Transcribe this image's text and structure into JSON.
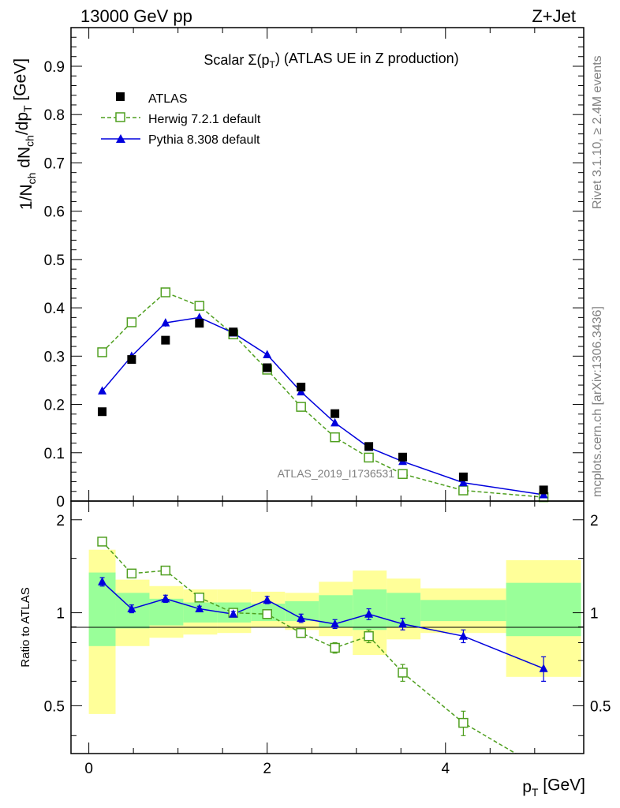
{
  "header": {
    "left": "13000 GeV pp",
    "right": "Z+Jet"
  },
  "side": {
    "rivet": "Rivet 3.1.10, ≥ 2.4M events",
    "mcplots": "mcplots.cern.ch [arXiv:1306.3436]"
  },
  "colors": {
    "atlas": "#000000",
    "herwig": "#4f9f1f",
    "pythia": "#0000dd",
    "band_yellow": "#ffff99",
    "band_green": "#99ff99"
  },
  "chart_data": [
    {
      "type": "scatter",
      "title": "Scalar Σ(p_T) (ATLAS UE in Z production)",
      "analysis_tag": "ATLAS_2019_I1736531",
      "ylabel": "1/N_ch dN_ch/dp_T [GeV]",
      "xlim": [
        -0.2,
        5.55
      ],
      "ylim": [
        0,
        0.98
      ],
      "yticks": [
        0,
        0.1,
        0.2,
        0.3,
        0.4,
        0.5,
        0.6,
        0.7,
        0.8,
        0.9
      ],
      "ytick_labels": [
        "0",
        "0.1",
        "0.2",
        "0.3",
        "0.4",
        "0.5",
        "0.6",
        "0.7",
        "0.8",
        "0.9"
      ],
      "legend": {
        "placement": "top-left"
      },
      "x": [
        0.15,
        0.48,
        0.86,
        1.24,
        1.62,
        2.0,
        2.38,
        2.76,
        3.14,
        3.52,
        4.2,
        5.1
      ],
      "series": [
        {
          "name": "ATLAS",
          "marker": "square-filled",
          "values": [
            0.185,
            0.293,
            0.333,
            0.368,
            0.35,
            0.276,
            0.236,
            0.181,
            0.113,
            0.091,
            0.05,
            0.023
          ]
        },
        {
          "name": "Herwig 7.2.1 default",
          "marker": "square-open",
          "line": "dashed",
          "values": [
            0.308,
            0.37,
            0.432,
            0.404,
            0.345,
            0.272,
            0.195,
            0.132,
            0.09,
            0.056,
            0.022,
            0.008
          ],
          "errors": [
            0.008,
            0.008,
            0.009,
            0.008,
            0.007,
            0.006,
            0.005,
            0.004,
            0.004,
            0.003,
            0.002,
            0.002
          ]
        },
        {
          "name": "Pythia 8.308 default",
          "marker": "triangle-filled",
          "line": "solid",
          "values": [
            0.228,
            0.3,
            0.369,
            0.38,
            0.348,
            0.303,
            0.226,
            0.162,
            0.111,
            0.082,
            0.038,
            0.013
          ],
          "errors": [
            0.006,
            0.008,
            0.008,
            0.008,
            0.007,
            0.006,
            0.005,
            0.004,
            0.003,
            0.003,
            0.002,
            0.002
          ]
        }
      ]
    },
    {
      "type": "line",
      "ylabel": "Ratio to ATLAS",
      "xlabel": "p_T [GeV]",
      "xlim": [
        -0.2,
        5.55
      ],
      "ylim": [
        0.35,
        2.3
      ],
      "yscale": "log",
      "xticks": [
        0,
        2,
        4
      ],
      "xtick_labels": [
        "0",
        "2",
        "4"
      ],
      "yticks": [
        0.5,
        1,
        2
      ],
      "ytick_labels": [
        "0.5",
        "1",
        "2"
      ],
      "bins": [
        [
          0.0,
          0.3
        ],
        [
          0.3,
          0.68
        ],
        [
          0.68,
          1.06
        ],
        [
          1.06,
          1.44
        ],
        [
          1.44,
          1.82
        ],
        [
          1.82,
          2.2
        ],
        [
          2.2,
          2.58
        ],
        [
          2.58,
          2.96
        ],
        [
          2.96,
          3.34
        ],
        [
          3.34,
          3.72
        ],
        [
          3.72,
          4.68
        ],
        [
          4.68,
          5.52
        ]
      ],
      "band_total": [
        [
          0.47,
          1.6
        ],
        [
          0.78,
          1.28
        ],
        [
          0.83,
          1.22
        ],
        [
          0.85,
          1.19
        ],
        [
          0.86,
          1.19
        ],
        [
          0.9,
          1.17
        ],
        [
          0.88,
          1.16
        ],
        [
          0.84,
          1.26
        ],
        [
          0.73,
          1.37
        ],
        [
          0.82,
          1.29
        ],
        [
          0.86,
          1.2
        ],
        [
          0.62,
          1.48
        ]
      ],
      "band_stat": [
        [
          0.78,
          1.35
        ],
        [
          0.89,
          1.16
        ],
        [
          0.91,
          1.11
        ],
        [
          0.93,
          1.08
        ],
        [
          0.93,
          1.08
        ],
        [
          0.94,
          1.07
        ],
        [
          0.94,
          1.09
        ],
        [
          0.9,
          1.14
        ],
        [
          0.88,
          1.19
        ],
        [
          0.9,
          1.16
        ],
        [
          0.94,
          1.1
        ],
        [
          0.84,
          1.25
        ]
      ],
      "series": [
        {
          "name": "Herwig 7.2.1 default",
          "marker": "square-open",
          "line": "dashed",
          "values": [
            1.7,
            1.34,
            1.37,
            1.12,
            1.0,
            0.99,
            0.86,
            0.77,
            0.84,
            0.64,
            0.44,
            0.31
          ],
          "errors": [
            0.04,
            0.04,
            0.04,
            0.03,
            0.02,
            0.02,
            0.02,
            0.03,
            0.04,
            0.04,
            0.04,
            0.05
          ]
        },
        {
          "name": "Pythia 8.308 default",
          "marker": "triangle-filled",
          "line": "solid",
          "values": [
            1.26,
            1.03,
            1.11,
            1.03,
            0.99,
            1.1,
            0.96,
            0.92,
            0.99,
            0.92,
            0.84,
            0.66
          ],
          "errors": [
            0.04,
            0.03,
            0.03,
            0.02,
            0.02,
            0.03,
            0.03,
            0.03,
            0.04,
            0.04,
            0.04,
            0.06
          ]
        }
      ]
    }
  ]
}
